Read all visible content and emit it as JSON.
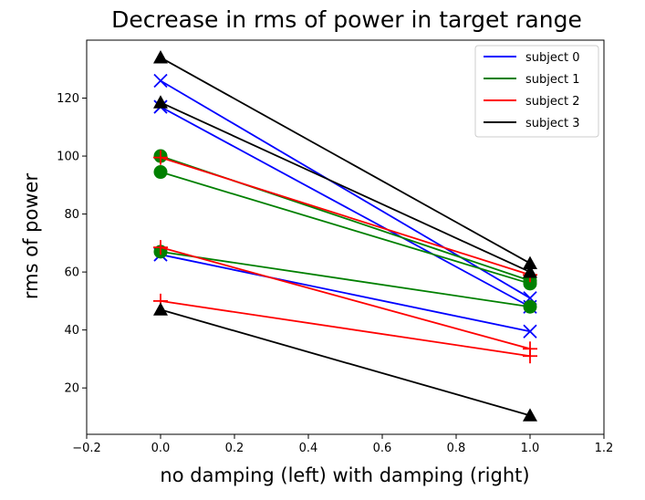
{
  "chart_data": {
    "type": "line",
    "title": "Decrease in rms of power in target range",
    "xlabel": "no damping (left) with damping (right)",
    "ylabel": "rms of power",
    "xlim": [
      -0.2,
      1.2
    ],
    "ylim": [
      4,
      140
    ],
    "xticks": [
      -0.2,
      0.0,
      0.2,
      0.4,
      0.6,
      0.8,
      1.0,
      1.2
    ],
    "xtick_labels": [
      "−0.2",
      "0.0",
      "0.2",
      "0.4",
      "0.6",
      "0.8",
      "1.0",
      "1.2"
    ],
    "yticks": [
      20,
      40,
      60,
      80,
      100,
      120
    ],
    "ytick_labels": [
      "20",
      "40",
      "60",
      "80",
      "100",
      "120"
    ],
    "grid": false,
    "legend_position": "top-right",
    "legend": [
      {
        "label": "subject 0",
        "color": "#0000ff"
      },
      {
        "label": "subject 1",
        "color": "#008000"
      },
      {
        "label": "subject 2",
        "color": "#ff0000"
      },
      {
        "label": "subject 3",
        "color": "#000000"
      }
    ],
    "series": [
      {
        "subject": 0,
        "color": "#0000ff",
        "marker": "x",
        "x": [
          0,
          1
        ],
        "y": [
          126,
          51
        ]
      },
      {
        "subject": 0,
        "color": "#0000ff",
        "marker": "x",
        "x": [
          0,
          1
        ],
        "y": [
          117,
          48
        ]
      },
      {
        "subject": 0,
        "color": "#0000ff",
        "marker": "x",
        "x": [
          0,
          1
        ],
        "y": [
          66,
          39.5
        ]
      },
      {
        "subject": 1,
        "color": "#008000",
        "marker": "o",
        "x": [
          0,
          1
        ],
        "y": [
          100,
          57
        ]
      },
      {
        "subject": 1,
        "color": "#008000",
        "marker": "o",
        "x": [
          0,
          1
        ],
        "y": [
          94.5,
          56
        ]
      },
      {
        "subject": 1,
        "color": "#008000",
        "marker": "o",
        "x": [
          0,
          1
        ],
        "y": [
          67,
          48
        ]
      },
      {
        "subject": 2,
        "color": "#ff0000",
        "marker": "+",
        "x": [
          0,
          1
        ],
        "y": [
          99.5,
          59
        ]
      },
      {
        "subject": 2,
        "color": "#ff0000",
        "marker": "+",
        "x": [
          0,
          1
        ],
        "y": [
          68.5,
          33.5
        ]
      },
      {
        "subject": 2,
        "color": "#ff0000",
        "marker": "+",
        "x": [
          0,
          1
        ],
        "y": [
          50,
          31
        ]
      },
      {
        "subject": 3,
        "color": "#000000",
        "marker": "^",
        "x": [
          0,
          1
        ],
        "y": [
          134,
          63
        ]
      },
      {
        "subject": 3,
        "color": "#000000",
        "marker": "^",
        "x": [
          0,
          1
        ],
        "y": [
          118.5,
          60
        ]
      },
      {
        "subject": 3,
        "color": "#000000",
        "marker": "^",
        "x": [
          0,
          1
        ],
        "y": [
          47,
          10.5
        ]
      }
    ]
  }
}
